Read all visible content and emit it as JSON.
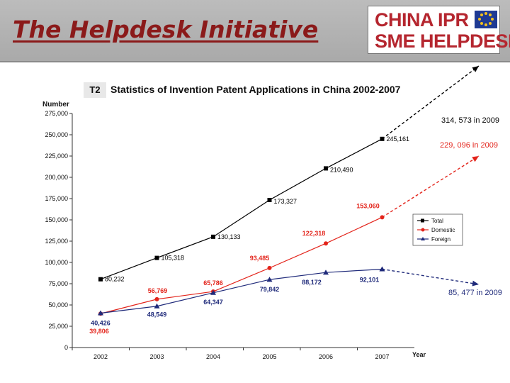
{
  "header": {
    "title": "The Helpdesk Initiative",
    "logo_line1": "CHINA IPR",
    "logo_line2": "SME HELPDESK"
  },
  "chart_data": {
    "type": "line",
    "tag": "T2",
    "title": "Statistics of Invention Patent Applications in China 2002-2007",
    "ylabel": "Number",
    "xlabel": "Year",
    "ylim": [
      0,
      275000
    ],
    "yticks": [
      "0",
      "25,000",
      "50,000",
      "75,000",
      "100,000",
      "125,000",
      "150,000",
      "175,000",
      "200,000",
      "225,000",
      "250,000",
      "275,000"
    ],
    "categories": [
      "2002",
      "2003",
      "2004",
      "2005",
      "2006",
      "2007"
    ],
    "legend_position": "right",
    "series": [
      {
        "name": "Total",
        "color": "#000000",
        "marker": "square",
        "values": [
          80232,
          105318,
          130133,
          173327,
          210490,
          245161
        ],
        "labels": [
          "80,232",
          "105,318",
          "130,133",
          "173,327",
          "210,490",
          "245,161"
        ]
      },
      {
        "name": "Domestic",
        "color": "#e3241b",
        "marker": "circle",
        "values": [
          39806,
          56769,
          65786,
          93485,
          122318,
          153060
        ],
        "labels": [
          "39,806",
          "56,769",
          "65,786",
          "93,485",
          "122,318",
          "153,060"
        ]
      },
      {
        "name": "Foreign",
        "color": "#1f2a7a",
        "marker": "triangle",
        "values": [
          40426,
          48549,
          64347,
          79842,
          88172,
          92101
        ],
        "labels": [
          "40,426",
          "48,549",
          "64,347",
          "79,842",
          "88,172",
          "92,101"
        ]
      }
    ],
    "annotations": [
      {
        "text": "314, 573 in 2009",
        "color": "#000000"
      },
      {
        "text": "229, 096 in 2009",
        "color": "#e3241b"
      },
      {
        "text": "85, 477 in 2009",
        "color": "#1f2a7a"
      }
    ]
  }
}
